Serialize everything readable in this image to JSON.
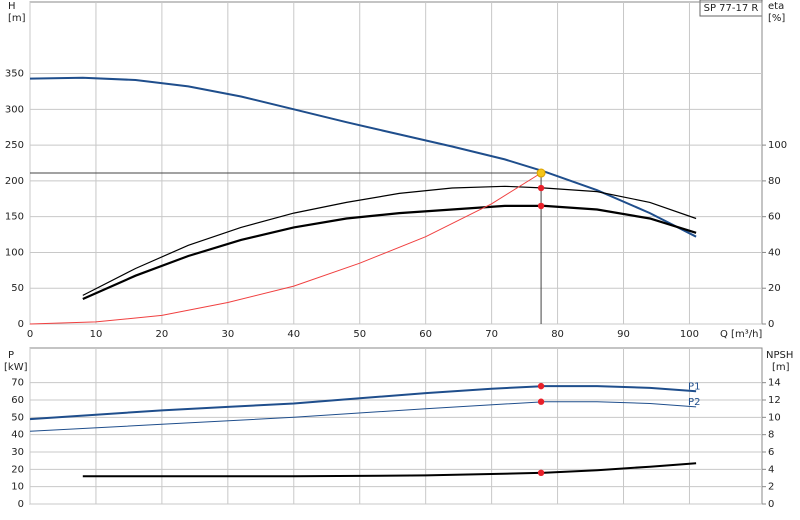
{
  "chart_data": [
    {
      "type": "line",
      "title": "SP 77-17 R",
      "x_label": "Q [m³/h]",
      "y_label": "H",
      "y_unit": "[m]",
      "y2_label": "eta",
      "y2_unit": "[%]",
      "xlim": [
        0,
        111
      ],
      "xticks": [
        0,
        10,
        20,
        30,
        40,
        50,
        60,
        70,
        80,
        90,
        100
      ],
      "ylim": [
        0,
        450
      ],
      "yticks": [
        0,
        50,
        100,
        150,
        200,
        250,
        300,
        350
      ],
      "y2lim": [
        0,
        180
      ],
      "y2ticks": [
        0,
        20,
        40,
        60,
        80,
        100
      ],
      "grid": true,
      "duty_point": {
        "x": 77.5,
        "y": 211,
        "color": "#f5c518"
      },
      "series": [
        {
          "color": "#1f4e8c",
          "width": 2,
          "axis": "y",
          "x": [
            0,
            8,
            16,
            24,
            32,
            40,
            48,
            56,
            64,
            72,
            78,
            86,
            94,
            101
          ],
          "values": [
            343,
            344,
            341,
            332,
            318,
            300,
            282,
            265,
            248,
            230,
            213,
            187,
            155,
            122
          ]
        },
        {
          "color": "#000000",
          "width": 1.2,
          "axis": "y2",
          "x": [
            8,
            16,
            24,
            32,
            40,
            48,
            56,
            64,
            72,
            78,
            86,
            94,
            101
          ],
          "values": [
            16,
            31,
            44,
            54,
            62,
            68,
            73,
            76,
            77,
            76,
            74,
            68,
            59
          ],
          "highlight": {
            "x": 77.5,
            "y": 76,
            "color": "#e8202a"
          }
        },
        {
          "color": "#000000",
          "width": 2.2,
          "axis": "y2",
          "x": [
            8,
            16,
            24,
            32,
            40,
            48,
            56,
            64,
            72,
            78,
            86,
            94,
            101
          ],
          "values": [
            14,
            27,
            38,
            47,
            54,
            59,
            62,
            64,
            66,
            66,
            64,
            59,
            51
          ],
          "highlight": {
            "x": 77.5,
            "y": 66,
            "color": "#e8202a"
          }
        },
        {
          "color": "#f04040",
          "width": 1,
          "axis": "y",
          "x": [
            0,
            10,
            20,
            30,
            40,
            50,
            60,
            70,
            77.5
          ],
          "values": [
            0,
            3,
            12,
            30,
            53,
            85,
            122,
            168,
            211
          ]
        }
      ]
    },
    {
      "type": "line",
      "y_label": "P",
      "y_unit": "[kW]",
      "y2_label": "NPSH",
      "y2_unit": "[m]",
      "xlim": [
        0,
        111
      ],
      "xticks": [
        0,
        10,
        20,
        30,
        40,
        50,
        60,
        70,
        80,
        90,
        100
      ],
      "xtick_labels": false,
      "ylim": [
        0,
        90
      ],
      "yticks": [
        0,
        10,
        20,
        30,
        40,
        50,
        60,
        70
      ],
      "y2lim": [
        0,
        18
      ],
      "y2ticks": [
        0,
        2,
        4,
        6,
        8,
        10,
        12,
        14
      ],
      "grid": true,
      "series": [
        {
          "name": "P1",
          "color": "#1f4e8c",
          "width": 2,
          "axis": "y",
          "x": [
            0,
            10,
            20,
            30,
            40,
            50,
            60,
            70,
            78,
            86,
            94,
            101
          ],
          "values": [
            49,
            51.5,
            54,
            56,
            58,
            61,
            64,
            66.5,
            68,
            68,
            67,
            65
          ],
          "highlight": {
            "x": 77.5,
            "y": 68,
            "color": "#e8202a"
          }
        },
        {
          "name": "P2",
          "color": "#1f4e8c",
          "width": 1,
          "axis": "y",
          "x": [
            0,
            20,
            40,
            60,
            78,
            86,
            94,
            101
          ],
          "values": [
            42,
            46,
            50,
            55,
            59,
            59,
            58,
            56
          ],
          "highlight": {
            "x": 77.5,
            "y": 59,
            "color": "#e8202a"
          }
        },
        {
          "color": "#000000",
          "width": 2,
          "axis": "y2",
          "x": [
            8,
            20,
            40,
            60,
            78,
            86,
            94,
            101
          ],
          "values": [
            3.2,
            3.2,
            3.2,
            3.3,
            3.6,
            3.9,
            4.3,
            4.7
          ],
          "highlight": {
            "x": 77.5,
            "y": 3.6,
            "color": "#e8202a"
          }
        }
      ]
    }
  ]
}
